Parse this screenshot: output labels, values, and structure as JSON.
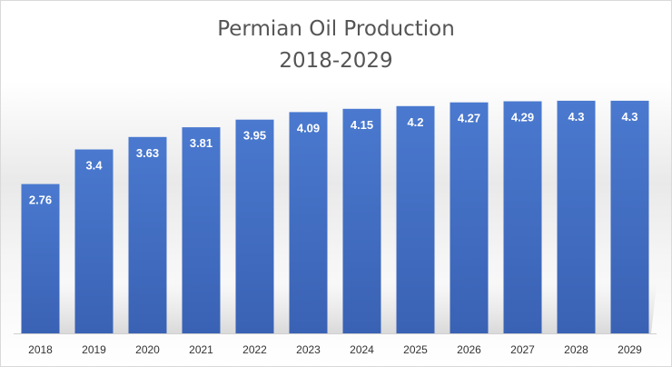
{
  "chart_data": {
    "type": "bar",
    "title": "Permian Oil Production",
    "subtitle": "2018-2029",
    "xlabel": "",
    "ylabel": "",
    "categories": [
      "2018",
      "2019",
      "2020",
      "2021",
      "2022",
      "2023",
      "2024",
      "2025",
      "2026",
      "2027",
      "2028",
      "2029"
    ],
    "values": [
      2.76,
      3.4,
      3.63,
      3.81,
      3.95,
      4.09,
      4.15,
      4.2,
      4.27,
      4.29,
      4.3,
      4.3
    ],
    "data_labels": [
      "2.76",
      "3.4",
      "3.63",
      "3.81",
      "3.95",
      "4.09",
      "4.15",
      "4.2",
      "4.27",
      "4.29",
      "4.3",
      "4.3"
    ],
    "ylim": [
      0,
      4.6
    ],
    "grid": false,
    "legend": "none",
    "bar_color": "#4472c4"
  }
}
